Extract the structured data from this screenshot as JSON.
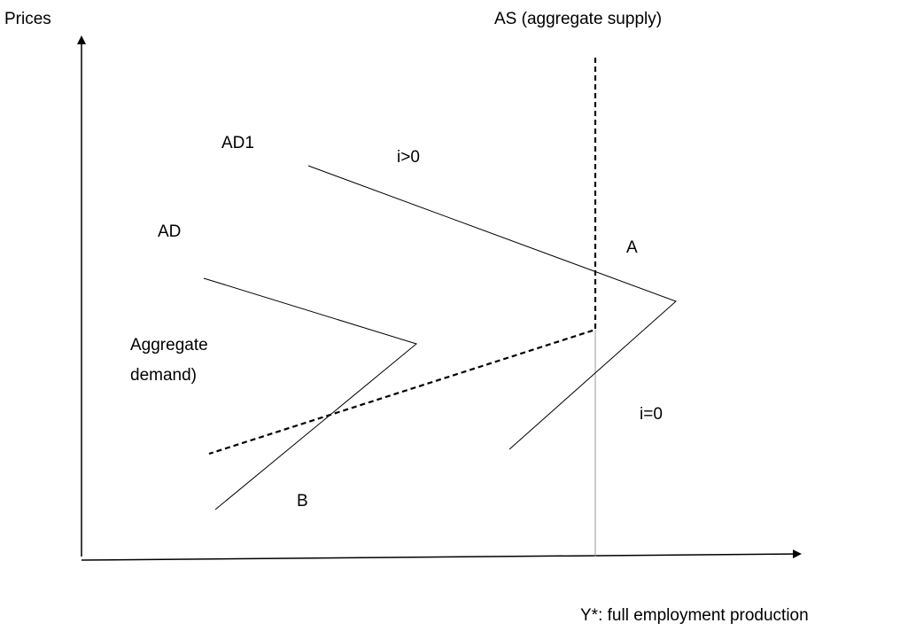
{
  "axes": {
    "y_label": "Prices",
    "x_label": "Y*: full employment production"
  },
  "curves": {
    "as": "AS (aggregate supply)",
    "ad1": "AD1",
    "ad": "AD",
    "ad_note_line1": "Aggregate",
    "ad_note_line2": "demand)"
  },
  "points": {
    "a": "A",
    "b": "B"
  },
  "regimes": {
    "positive_rate": "i>0",
    "zero_rate": "i=0"
  }
}
